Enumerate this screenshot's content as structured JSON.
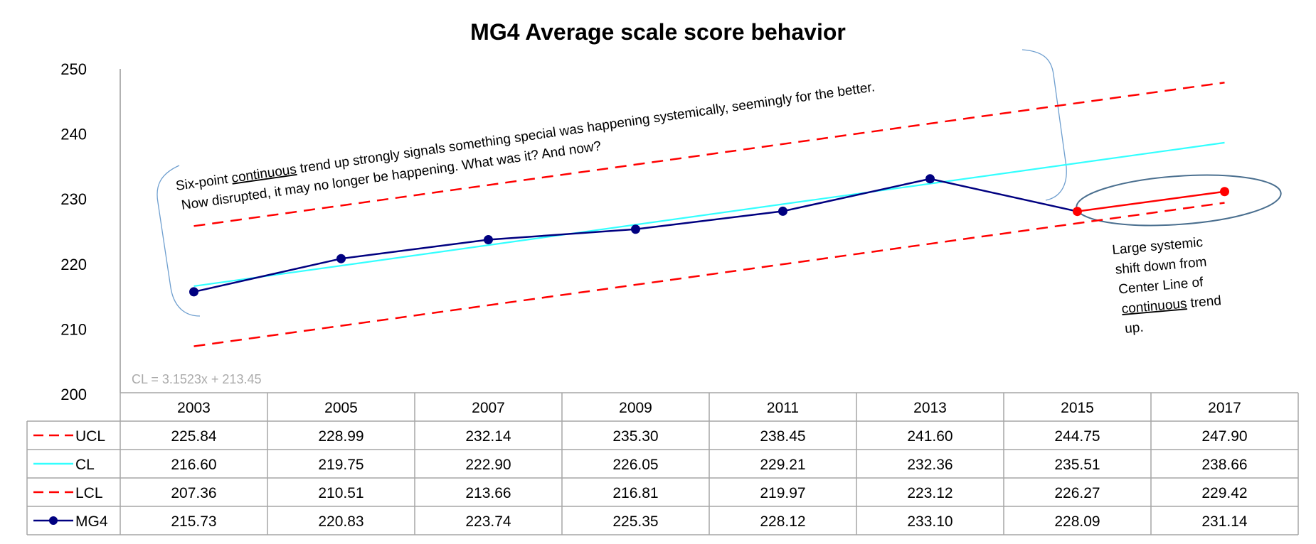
{
  "chart_data": {
    "type": "line",
    "title": "MG4 Average scale score behavior",
    "categories": [
      "2003",
      "2005",
      "2007",
      "2009",
      "2011",
      "2013",
      "2015",
      "2017"
    ],
    "ylim": [
      200,
      250
    ],
    "yticks": [
      200,
      210,
      220,
      230,
      240,
      250
    ],
    "grid": false,
    "legend_placement": "data-table-left",
    "series": [
      {
        "name": "UCL",
        "style": "dashed",
        "color": "#ff0000",
        "values": [
          225.84,
          228.99,
          232.14,
          235.3,
          238.45,
          241.6,
          244.75,
          247.9
        ],
        "labels": [
          "225.84",
          "228.99",
          "232.14",
          "235.30",
          "238.45",
          "241.60",
          "244.75",
          "247.90"
        ]
      },
      {
        "name": "CL",
        "style": "solid",
        "color": "#33ffff",
        "values": [
          216.6,
          219.75,
          222.9,
          226.05,
          229.21,
          232.36,
          235.51,
          238.66
        ],
        "labels": [
          "216.60",
          "219.75",
          "222.90",
          "226.05",
          "229.21",
          "232.36",
          "235.51",
          "238.66"
        ]
      },
      {
        "name": "LCL",
        "style": "dashed",
        "color": "#ff0000",
        "values": [
          207.36,
          210.51,
          213.66,
          216.81,
          219.97,
          223.12,
          226.27,
          229.42
        ],
        "labels": [
          "207.36",
          "210.51",
          "213.66",
          "216.81",
          "219.97",
          "223.12",
          "226.27",
          "229.42"
        ]
      },
      {
        "name": "MG4",
        "style": "solid-markers",
        "color": "#000080",
        "highlight_color": "#ff0000",
        "highlight_from_index": 6,
        "values": [
          215.73,
          220.83,
          223.74,
          225.35,
          228.12,
          233.1,
          228.09,
          231.14
        ],
        "labels": [
          "215.73",
          "220.83",
          "223.74",
          "225.35",
          "228.12",
          "233.10",
          "228.09",
          "231.14"
        ]
      }
    ],
    "trendline_label": "CL = 3.1523x + 213.45",
    "annotations": {
      "trend_note": {
        "line1_pre": "Six-point ",
        "line1_underlined": "continuous",
        "line1_post": " trend up strongly signals something special was happening systemically, seemingly for the better.",
        "line2": "Now disrupted, it may no longer be happening.  What was it?  And now?"
      },
      "shift_note": {
        "line1": "Large systemic",
        "line2": "shift down from",
        "line3": "Center Line of",
        "line4_underlined": "continuous",
        "line4_post": " trend",
        "line5": "up."
      }
    }
  }
}
